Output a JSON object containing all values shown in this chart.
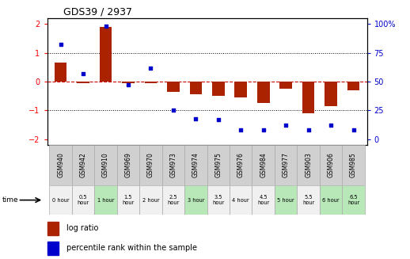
{
  "title": "GDS39 / 2937",
  "samples": [
    "GSM940",
    "GSM942",
    "GSM910",
    "GSM969",
    "GSM970",
    "GSM973",
    "GSM974",
    "GSM975",
    "GSM976",
    "GSM984",
    "GSM977",
    "GSM903",
    "GSM906",
    "GSM985"
  ],
  "time_labels": [
    "0 hour",
    "0.5\nhour",
    "1 hour",
    "1.5\nhour",
    "2 hour",
    "2.5\nhour",
    "3 hour",
    "3.5\nhour",
    "4 hour",
    "4.5\nhour",
    "5 hour",
    "5.5\nhour",
    "6 hour",
    "6.5\nhour"
  ],
  "time_bg": [
    "white",
    "white",
    "lightgreen",
    "white",
    "white",
    "white",
    "lightgreen",
    "white",
    "white",
    "white",
    "lightgreen",
    "white",
    "lightgreen",
    "lightgreen"
  ],
  "log_ratio": [
    0.65,
    -0.05,
    1.9,
    -0.05,
    -0.05,
    -0.35,
    -0.45,
    -0.5,
    -0.55,
    -0.75,
    -0.25,
    -1.1,
    -0.85,
    -0.3
  ],
  "percentile": [
    82,
    57,
    98,
    47,
    62,
    25,
    18,
    17,
    8,
    8,
    12,
    8,
    12,
    8
  ],
  "ylim": [
    -2.2,
    2.2
  ],
  "yticks_left": [
    -2,
    -1,
    0,
    1,
    2
  ],
  "yticks_right": [
    0,
    25,
    50,
    75,
    100
  ],
  "bar_color": "#aa2200",
  "dot_color": "#0000cc",
  "zero_line_color": "#cc0000",
  "grid_color": "#000000",
  "bg_color": "#ffffff",
  "legend_log_ratio": "log ratio",
  "legend_percentile": "percentile rank within the sample"
}
